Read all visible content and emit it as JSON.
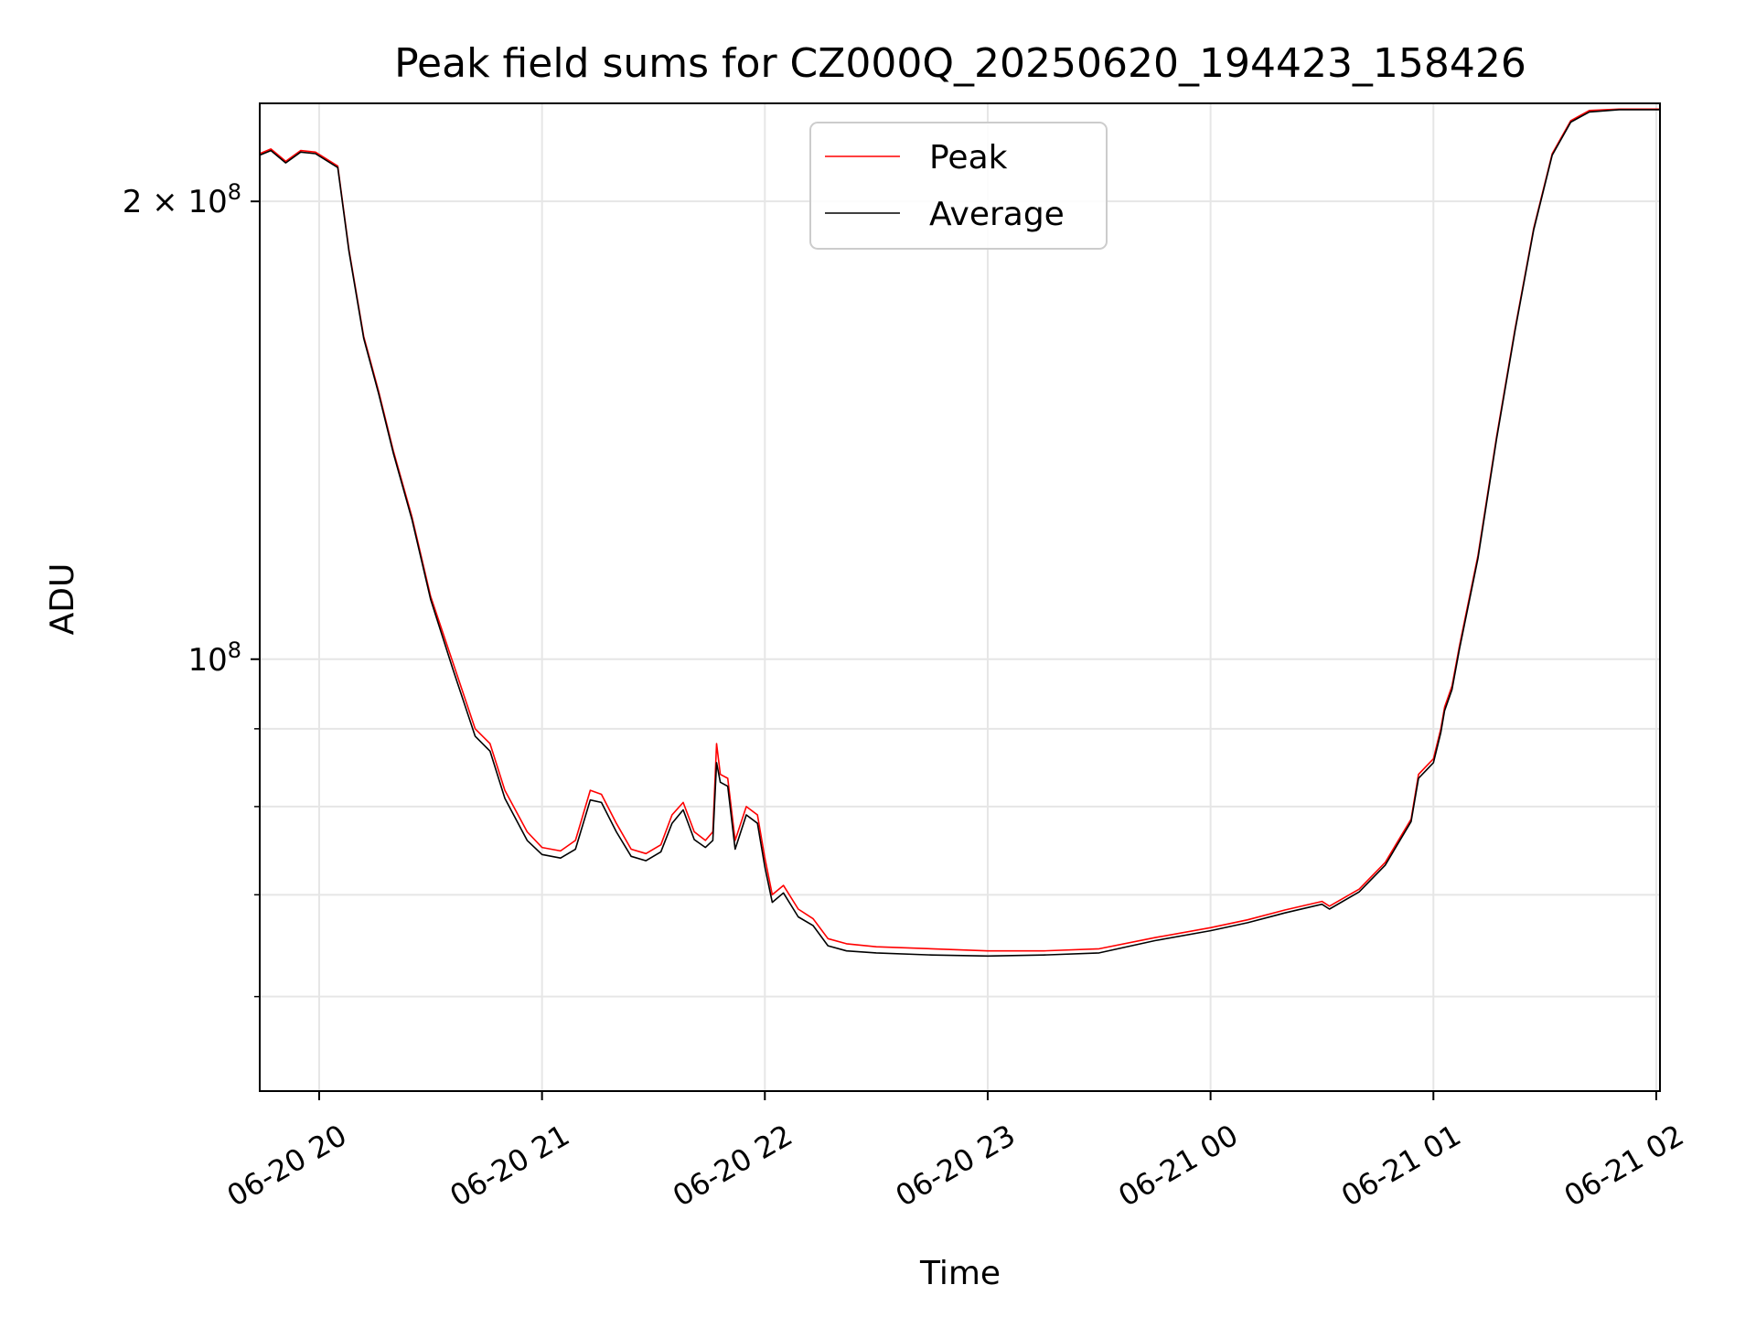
{
  "chart_data": {
    "type": "line",
    "title": "Peak field sums for CZ000Q_20250620_194423_158426",
    "xlabel": "Time",
    "ylabel": "ADU",
    "y_scale": "log",
    "grid": true,
    "legend_position": "upper-center",
    "xlim": [
      "2025-06-20 19:44",
      "2025-06-21 02:01"
    ],
    "ylim": [
      52000000,
      232000000
    ],
    "x_ticks": [
      {
        "value": "2025-06-20 20:00",
        "label": "06-20 20"
      },
      {
        "value": "2025-06-20 21:00",
        "label": "06-20 21"
      },
      {
        "value": "2025-06-20 22:00",
        "label": "06-20 22"
      },
      {
        "value": "2025-06-20 23:00",
        "label": "06-20 23"
      },
      {
        "value": "2025-06-21 00:00",
        "label": "06-21 00"
      },
      {
        "value": "2025-06-21 01:00",
        "label": "06-21 01"
      },
      {
        "value": "2025-06-21 02:00",
        "label": "06-21 02"
      }
    ],
    "y_major_ticks": [
      {
        "value": 100000000,
        "base": "10",
        "exp": "8",
        "coef": ""
      },
      {
        "value": 200000000,
        "base": "10",
        "exp": "8",
        "coef": "2"
      }
    ],
    "y_minor_ticks": [
      60000000,
      70000000,
      80000000,
      90000000
    ],
    "series": [
      {
        "name": "Peak",
        "color": "#ff0000",
        "points": [
          [
            "2025-06-20 19:44",
            215000000
          ],
          [
            "2025-06-20 19:47",
            216500000
          ],
          [
            "2025-06-20 19:51",
            212500000
          ],
          [
            "2025-06-20 19:55",
            216000000
          ],
          [
            "2025-06-20 19:59",
            215500000
          ],
          [
            "2025-06-20 20:05",
            211000000
          ],
          [
            "2025-06-20 20:08",
            186000000
          ],
          [
            "2025-06-20 20:12",
            163000000
          ],
          [
            "2025-06-20 20:16",
            150000000
          ],
          [
            "2025-06-20 20:20",
            137000000
          ],
          [
            "2025-06-20 20:25",
            124000000
          ],
          [
            "2025-06-20 20:30",
            110000000
          ],
          [
            "2025-06-20 20:36",
            99500000
          ],
          [
            "2025-06-20 20:42",
            90000000
          ],
          [
            "2025-06-20 20:46",
            88000000
          ],
          [
            "2025-06-20 20:50",
            82000000
          ],
          [
            "2025-06-20 20:56",
            77000000
          ],
          [
            "2025-06-20 21:00",
            75200000
          ],
          [
            "2025-06-20 21:05",
            74800000
          ],
          [
            "2025-06-20 21:09",
            76000000
          ],
          [
            "2025-06-20 21:13",
            82000000
          ],
          [
            "2025-06-20 21:16",
            81500000
          ],
          [
            "2025-06-20 21:20",
            78000000
          ],
          [
            "2025-06-20 21:24",
            75000000
          ],
          [
            "2025-06-20 21:28",
            74500000
          ],
          [
            "2025-06-20 21:32",
            75500000
          ],
          [
            "2025-06-20 21:35",
            79000000
          ],
          [
            "2025-06-20 21:38",
            80500000
          ],
          [
            "2025-06-20 21:41",
            77000000
          ],
          [
            "2025-06-20 21:44",
            76000000
          ],
          [
            "2025-06-20 21:46",
            77000000
          ],
          [
            "2025-06-20 21:47",
            88000000
          ],
          [
            "2025-06-20 21:48",
            84000000
          ],
          [
            "2025-06-20 21:50",
            83500000
          ],
          [
            "2025-06-20 21:52",
            76000000
          ],
          [
            "2025-06-20 21:55",
            80000000
          ],
          [
            "2025-06-20 21:58",
            79000000
          ],
          [
            "2025-06-20 22:00",
            74000000
          ],
          [
            "2025-06-20 22:02",
            70000000
          ],
          [
            "2025-06-20 22:05",
            71000000
          ],
          [
            "2025-06-20 22:09",
            68500000
          ],
          [
            "2025-06-20 22:13",
            67500000
          ],
          [
            "2025-06-20 22:17",
            65500000
          ],
          [
            "2025-06-20 22:22",
            65000000
          ],
          [
            "2025-06-20 22:30",
            64700000
          ],
          [
            "2025-06-20 22:45",
            64500000
          ],
          [
            "2025-06-20 23:00",
            64300000
          ],
          [
            "2025-06-20 23:15",
            64300000
          ],
          [
            "2025-06-20 23:30",
            64500000
          ],
          [
            "2025-06-20 23:45",
            65600000
          ],
          [
            "2025-06-21 00:00",
            66600000
          ],
          [
            "2025-06-21 00:10",
            67400000
          ],
          [
            "2025-06-21 00:20",
            68400000
          ],
          [
            "2025-06-21 00:30",
            69300000
          ],
          [
            "2025-06-21 00:32",
            68800000
          ],
          [
            "2025-06-21 00:40",
            70600000
          ],
          [
            "2025-06-21 00:47",
            73500000
          ],
          [
            "2025-06-21 00:54",
            78500000
          ],
          [
            "2025-06-21 00:56",
            84000000
          ],
          [
            "2025-06-21 00:58",
            85000000
          ],
          [
            "2025-06-21 01:00",
            86000000
          ],
          [
            "2025-06-21 01:02",
            90000000
          ],
          [
            "2025-06-21 01:03",
            93000000
          ],
          [
            "2025-06-21 01:05",
            96000000
          ],
          [
            "2025-06-21 01:07",
            102000000
          ],
          [
            "2025-06-21 01:12",
            117000000
          ],
          [
            "2025-06-21 01:17",
            140000000
          ],
          [
            "2025-06-21 01:22",
            165000000
          ],
          [
            "2025-06-21 01:27",
            192000000
          ],
          [
            "2025-06-21 01:32",
            215000000
          ],
          [
            "2025-06-21 01:37",
            226000000
          ],
          [
            "2025-06-21 01:42",
            229500000
          ],
          [
            "2025-06-21 01:50",
            230000000
          ],
          [
            "2025-06-21 02:01",
            230000000
          ]
        ]
      },
      {
        "name": "Average",
        "color": "#000000",
        "points": [
          [
            "2025-06-20 19:44",
            214500000
          ],
          [
            "2025-06-20 19:47",
            216000000
          ],
          [
            "2025-06-20 19:51",
            212000000
          ],
          [
            "2025-06-20 19:55",
            215500000
          ],
          [
            "2025-06-20 19:59",
            215000000
          ],
          [
            "2025-06-20 20:05",
            210500000
          ],
          [
            "2025-06-20 20:08",
            185500000
          ],
          [
            "2025-06-20 20:12",
            162500000
          ],
          [
            "2025-06-20 20:16",
            149500000
          ],
          [
            "2025-06-20 20:20",
            136500000
          ],
          [
            "2025-06-20 20:25",
            123500000
          ],
          [
            "2025-06-20 20:30",
            109500000
          ],
          [
            "2025-06-20 20:36",
            98500000
          ],
          [
            "2025-06-20 20:42",
            89000000
          ],
          [
            "2025-06-20 20:46",
            87000000
          ],
          [
            "2025-06-20 20:50",
            81000000
          ],
          [
            "2025-06-20 20:56",
            76000000
          ],
          [
            "2025-06-20 21:00",
            74400000
          ],
          [
            "2025-06-20 21:05",
            74000000
          ],
          [
            "2025-06-20 21:09",
            75000000
          ],
          [
            "2025-06-20 21:13",
            80800000
          ],
          [
            "2025-06-20 21:16",
            80500000
          ],
          [
            "2025-06-20 21:20",
            77000000
          ],
          [
            "2025-06-20 21:24",
            74200000
          ],
          [
            "2025-06-20 21:28",
            73700000
          ],
          [
            "2025-06-20 21:32",
            74700000
          ],
          [
            "2025-06-20 21:35",
            78000000
          ],
          [
            "2025-06-20 21:38",
            79600000
          ],
          [
            "2025-06-20 21:41",
            76100000
          ],
          [
            "2025-06-20 21:44",
            75200000
          ],
          [
            "2025-06-20 21:46",
            76000000
          ],
          [
            "2025-06-20 21:47",
            85500000
          ],
          [
            "2025-06-20 21:48",
            83000000
          ],
          [
            "2025-06-20 21:50",
            82500000
          ],
          [
            "2025-06-20 21:52",
            75000000
          ],
          [
            "2025-06-20 21:55",
            79000000
          ],
          [
            "2025-06-20 21:58",
            78000000
          ],
          [
            "2025-06-20 22:00",
            73000000
          ],
          [
            "2025-06-20 22:02",
            69200000
          ],
          [
            "2025-06-20 22:05",
            70200000
          ],
          [
            "2025-06-20 22:09",
            67700000
          ],
          [
            "2025-06-20 22:13",
            66800000
          ],
          [
            "2025-06-20 22:17",
            64800000
          ],
          [
            "2025-06-20 22:22",
            64300000
          ],
          [
            "2025-06-20 22:30",
            64100000
          ],
          [
            "2025-06-20 22:45",
            63900000
          ],
          [
            "2025-06-20 23:00",
            63800000
          ],
          [
            "2025-06-20 23:15",
            63900000
          ],
          [
            "2025-06-20 23:30",
            64100000
          ],
          [
            "2025-06-20 23:45",
            65300000
          ],
          [
            "2025-06-21 00:00",
            66300000
          ],
          [
            "2025-06-21 00:10",
            67100000
          ],
          [
            "2025-06-21 00:20",
            68100000
          ],
          [
            "2025-06-21 00:30",
            69000000
          ],
          [
            "2025-06-21 00:32",
            68500000
          ],
          [
            "2025-06-21 00:40",
            70300000
          ],
          [
            "2025-06-21 00:47",
            73200000
          ],
          [
            "2025-06-21 00:54",
            78200000
          ],
          [
            "2025-06-21 00:56",
            83500000
          ],
          [
            "2025-06-21 00:58",
            84500000
          ],
          [
            "2025-06-21 01:00",
            85500000
          ],
          [
            "2025-06-21 01:02",
            89500000
          ],
          [
            "2025-06-21 01:03",
            92500000
          ],
          [
            "2025-06-21 01:05",
            95500000
          ],
          [
            "2025-06-21 01:07",
            101500000
          ],
          [
            "2025-06-21 01:12",
            116500000
          ],
          [
            "2025-06-21 01:17",
            139500000
          ],
          [
            "2025-06-21 01:22",
            164500000
          ],
          [
            "2025-06-21 01:27",
            191500000
          ],
          [
            "2025-06-21 01:32",
            214500000
          ],
          [
            "2025-06-21 01:37",
            225500000
          ],
          [
            "2025-06-21 01:42",
            229000000
          ],
          [
            "2025-06-21 01:50",
            229800000
          ],
          [
            "2025-06-21 02:01",
            229800000
          ]
        ]
      }
    ]
  }
}
